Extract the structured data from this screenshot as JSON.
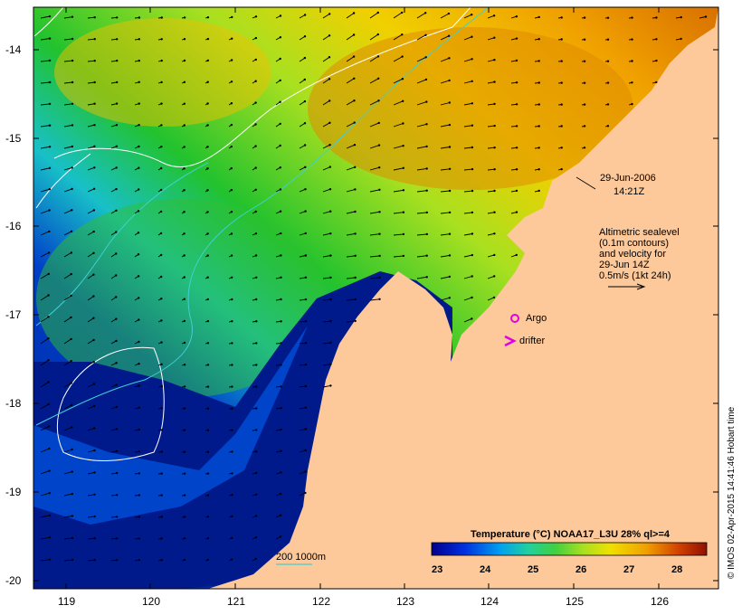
{
  "map": {
    "lon_ticks": [
      "119",
      "120",
      "121",
      "122",
      "123",
      "124",
      "125",
      "126"
    ],
    "lat_ticks": [
      "-14",
      "-15",
      "-16",
      "-17",
      "-18",
      "-19",
      "-20"
    ],
    "date": "29-Jun-2006",
    "time": "14:21Z",
    "altimetry_lines": [
      "Altimetric sealevel",
      "(0.1m contours)",
      "and velocity for",
      "29-Jun 14Z",
      "0.5m/s (1kt 24h)"
    ],
    "argo_label": "Argo",
    "drifter_label": "drifter",
    "depth_label": "200  1000m",
    "colorbar_title": "Temperature (°C) NOAA17_L3U 28% ql>=4",
    "colorbar_ticks": [
      "23",
      "24",
      "25",
      "26",
      "27",
      "28"
    ],
    "credit": "© IMOS 02-Apr-2015 14:41:46 Hobart time",
    "colors": {
      "land": "#fdc99a",
      "ocean_cold": "#001a8c",
      "ocean_mid": "#22c22e",
      "ocean_warm": "#f0a000",
      "contour": "#ffffff",
      "bathymetry": "#40d0d0",
      "argo": "#e000e0"
    }
  }
}
